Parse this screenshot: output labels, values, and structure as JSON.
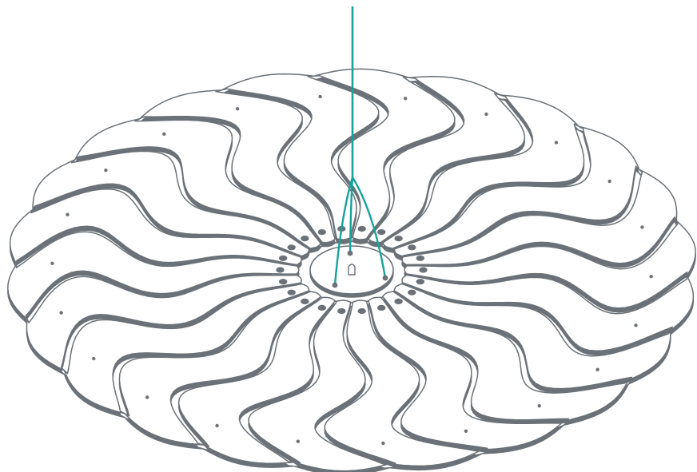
{
  "diagram": {
    "petal_count": 22,
    "suspension_cable_count": 3,
    "colors": {
      "background": "#ffffff",
      "petal_stroke": "#6b7176",
      "petal_fill": "#ffffff",
      "hole_fill": "#6b7176",
      "cable": "#16a39a",
      "hub_stroke": "#6b7176"
    },
    "icons": [
      "petal-panel",
      "suspension-cable",
      "central-hub",
      "mounting-hole"
    ]
  }
}
